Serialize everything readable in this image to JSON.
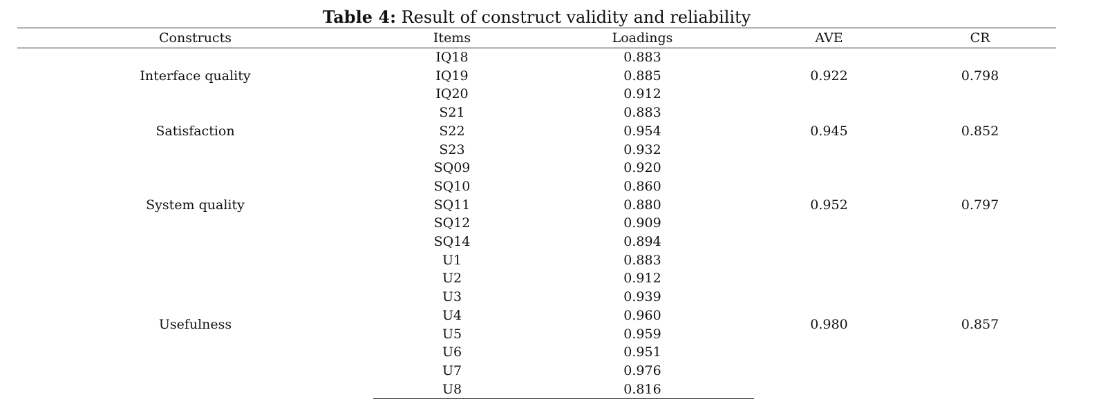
{
  "caption": {
    "label": "Table 4:",
    "text": " Result of construct validity and reliability"
  },
  "columns": {
    "construct": "Constructs",
    "item": "Items",
    "loading": "Loadings",
    "ave": "AVE",
    "cr": "CR"
  },
  "groups": [
    {
      "construct": "Interface quality",
      "ave": "0.922",
      "cr": "0.798",
      "rows": [
        {
          "item": "IQ18",
          "loading": "0.883"
        },
        {
          "item": "IQ19",
          "loading": "0.885"
        },
        {
          "item": "IQ20",
          "loading": "0.912"
        }
      ]
    },
    {
      "construct": "Satisfaction",
      "ave": "0.945",
      "cr": "0.852",
      "rows": [
        {
          "item": "S21",
          "loading": "0.883"
        },
        {
          "item": "S22",
          "loading": "0.954"
        },
        {
          "item": "S23",
          "loading": "0.932"
        }
      ]
    },
    {
      "construct": "System quality",
      "ave": "0.952",
      "cr": "0.797",
      "rows": [
        {
          "item": "SQ09",
          "loading": "0.920"
        },
        {
          "item": "SQ10",
          "loading": "0.860"
        },
        {
          "item": "SQ11",
          "loading": "0.880"
        },
        {
          "item": "SQ12",
          "loading": "0.909"
        },
        {
          "item": "SQ14",
          "loading": "0.894"
        }
      ]
    },
    {
      "construct": "Usefulness",
      "ave": "0.980",
      "cr": "0.857",
      "rows": [
        {
          "item": "U1",
          "loading": "0.883"
        },
        {
          "item": "U2",
          "loading": "0.912"
        },
        {
          "item": "U3",
          "loading": "0.939"
        },
        {
          "item": "U4",
          "loading": "0.960"
        },
        {
          "item": "U5",
          "loading": "0.959"
        },
        {
          "item": "U6",
          "loading": "0.951"
        },
        {
          "item": "U7",
          "loading": "0.976"
        },
        {
          "item": "U8",
          "loading": "0.816"
        }
      ]
    }
  ]
}
